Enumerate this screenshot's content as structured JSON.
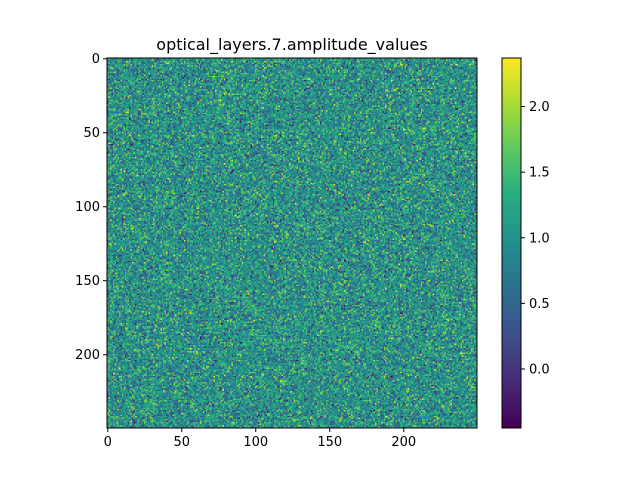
{
  "chart_data": {
    "type": "heatmap",
    "title": "optical_layers.7.amplitude_values",
    "xlabel": "",
    "ylabel": "",
    "rows": 250,
    "cols": 250,
    "xlim": [
      -0.5,
      249.5
    ],
    "ylim": [
      249.5,
      -0.5
    ],
    "x_ticks": [
      0,
      50,
      100,
      150,
      200
    ],
    "y_ticks": [
      0,
      50,
      100,
      150,
      200
    ],
    "x_tick_labels": [
      "0",
      "50",
      "100",
      "150",
      "200"
    ],
    "y_tick_labels": [
      "0",
      "50",
      "100",
      "150",
      "200"
    ],
    "value_distribution": {
      "mean": 1.0,
      "std": 0.45
    },
    "colormap": "viridis",
    "colorbar": {
      "vmin": -0.45,
      "vmax": 2.37,
      "ticks": [
        0.0,
        0.5,
        1.0,
        1.5,
        2.0
      ],
      "tick_labels": [
        "0.0",
        "0.5",
        "1.0",
        "1.5",
        "2.0"
      ]
    },
    "grid": false,
    "legend": "none"
  }
}
